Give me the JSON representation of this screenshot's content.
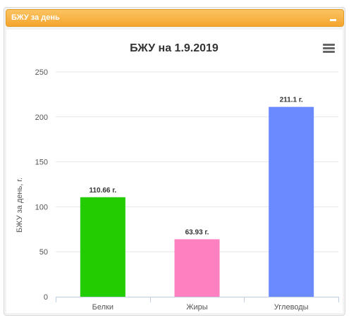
{
  "panel": {
    "title": "БЖУ за день"
  },
  "chart_data": {
    "type": "bar",
    "title": "БЖУ на 1.9.2019",
    "xlabel": "",
    "ylabel": "БЖУ за день, г.",
    "ylim": [
      0,
      250
    ],
    "yticks": [
      0,
      50,
      100,
      150,
      200,
      250
    ],
    "ytick_labels": [
      "0",
      "50",
      "100",
      "150",
      "200",
      "250"
    ],
    "categories": [
      "Белки",
      "Жиры",
      "Углеводы"
    ],
    "values": [
      110.66,
      63.93,
      211.1
    ],
    "data_labels": [
      "110.66 г.",
      "63.93 г.",
      "211.1 г."
    ],
    "colors": [
      "#22cc00",
      "#ff80c0",
      "#6b8aff"
    ],
    "grid": true,
    "legend": "none"
  }
}
